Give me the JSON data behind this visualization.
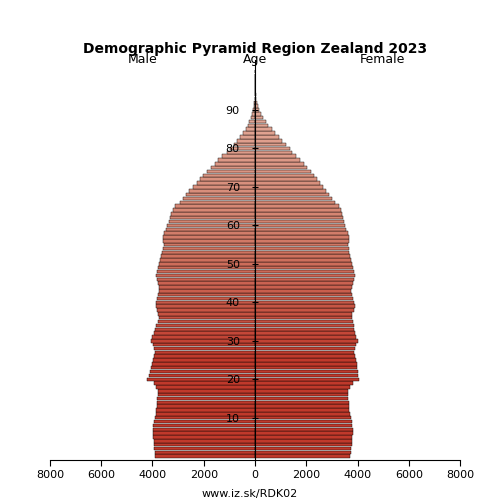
{
  "title": "Demographic Pyramid Region Zealand 2023",
  "xlabel_left": "Male",
  "xlabel_right": "Female",
  "ylabel": "Age",
  "footer": "www.iz.sk/RDK02",
  "xlim": 8000,
  "bar_color_young": "#c0392b",
  "bar_color_old": "#d4826e",
  "bar_edgecolor": "#000000",
  "ages": [
    0,
    1,
    2,
    3,
    4,
    5,
    6,
    7,
    8,
    9,
    10,
    11,
    12,
    13,
    14,
    15,
    16,
    17,
    18,
    19,
    20,
    21,
    22,
    23,
    24,
    25,
    26,
    27,
    28,
    29,
    30,
    31,
    32,
    33,
    34,
    35,
    36,
    37,
    38,
    39,
    40,
    41,
    42,
    43,
    44,
    45,
    46,
    47,
    48,
    49,
    50,
    51,
    52,
    53,
    54,
    55,
    56,
    57,
    58,
    59,
    60,
    61,
    62,
    63,
    64,
    65,
    66,
    67,
    68,
    69,
    70,
    71,
    72,
    73,
    74,
    75,
    76,
    77,
    78,
    79,
    80,
    81,
    82,
    83,
    84,
    85,
    86,
    87,
    88,
    89,
    90,
    91,
    92,
    93,
    94,
    95,
    96,
    97,
    98,
    99,
    100
  ],
  "male": [
    3900,
    3920,
    3940,
    3950,
    3960,
    3970,
    3980,
    3990,
    3970,
    3950,
    3900,
    3870,
    3850,
    3840,
    3830,
    3810,
    3790,
    3800,
    3850,
    3950,
    4200,
    4150,
    4100,
    4050,
    4000,
    3970,
    3950,
    3920,
    3950,
    3980,
    4050,
    4000,
    3960,
    3900,
    3850,
    3800,
    3750,
    3780,
    3830,
    3880,
    3850,
    3810,
    3770,
    3740,
    3760,
    3800,
    3840,
    3870,
    3840,
    3800,
    3760,
    3710,
    3660,
    3620,
    3590,
    3570,
    3590,
    3580,
    3540,
    3490,
    3430,
    3370,
    3310,
    3260,
    3200,
    3110,
    2940,
    2820,
    2700,
    2580,
    2420,
    2270,
    2150,
    2030,
    1890,
    1730,
    1580,
    1430,
    1270,
    1110,
    960,
    810,
    690,
    570,
    460,
    370,
    285,
    220,
    160,
    110,
    68,
    44,
    27,
    17,
    10,
    6,
    3,
    2,
    1,
    0,
    0
  ],
  "female": [
    3720,
    3740,
    3760,
    3770,
    3780,
    3790,
    3810,
    3820,
    3800,
    3780,
    3730,
    3700,
    3680,
    3670,
    3660,
    3640,
    3620,
    3640,
    3700,
    3820,
    4050,
    4030,
    4010,
    3990,
    3970,
    3930,
    3890,
    3860,
    3900,
    3940,
    4000,
    3960,
    3920,
    3880,
    3850,
    3810,
    3770,
    3800,
    3850,
    3900,
    3870,
    3830,
    3790,
    3760,
    3790,
    3830,
    3870,
    3900,
    3870,
    3840,
    3800,
    3760,
    3720,
    3680,
    3650,
    3640,
    3660,
    3650,
    3610,
    3570,
    3530,
    3490,
    3450,
    3410,
    3370,
    3290,
    3130,
    3010,
    2900,
    2790,
    2650,
    2530,
    2410,
    2300,
    2170,
    2040,
    1900,
    1760,
    1610,
    1460,
    1360,
    1210,
    1070,
    920,
    780,
    650,
    525,
    420,
    320,
    230,
    155,
    105,
    70,
    46,
    28,
    17,
    10,
    5,
    3,
    1,
    0
  ]
}
